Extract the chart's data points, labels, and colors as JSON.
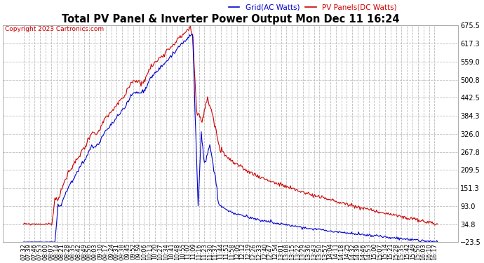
{
  "title": "Total PV Panel & Inverter Power Output Mon Dec 11 16:24",
  "copyright": "Copyright 2023 Cartronics.com",
  "legend_blue": "Grid(AC Watts)",
  "legend_red": "PV Panels(DC Watts)",
  "bg_color": "#ffffff",
  "plot_bg_color": "#ffffff",
  "grid_color": "#bbbbbb",
  "title_color": "#000000",
  "blue_color": "#0000cc",
  "red_color": "#cc0000",
  "copyright_color": "#cc0000",
  "ymin": -23.5,
  "ymax": 675.5,
  "yticks": [
    675.5,
    617.3,
    559.0,
    500.8,
    442.5,
    384.3,
    326.0,
    267.8,
    209.5,
    151.3,
    93.0,
    34.8,
    -23.5
  ],
  "figsize": [
    6.9,
    3.75
  ],
  "dpi": 100
}
